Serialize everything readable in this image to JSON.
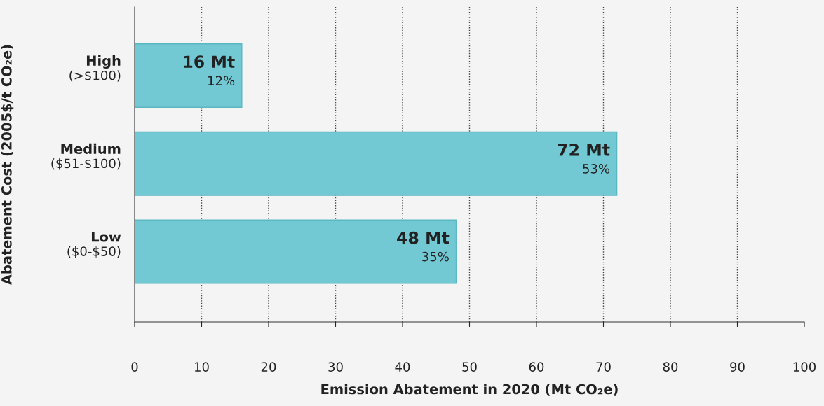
{
  "chart_data": {
    "type": "bar",
    "orientation": "horizontal",
    "categories": [
      "High\n(>$100)",
      "Medium\n($51-$100)",
      "Low\n($0-$50)"
    ],
    "values": [
      16,
      72,
      48
    ],
    "value_labels": [
      "16 Mt\n12%",
      "72 Mt\n53%",
      "48 Mt\n35%"
    ],
    "color": "#73c9d3",
    "xlabel": "Emission Abatement in 2020 (Mt CO₂e)",
    "ylabel": "Abatement Cost (2005$/t CO₂e)",
    "xlim": [
      0,
      100
    ],
    "xticks": [
      0,
      10,
      20,
      30,
      40,
      50,
      60,
      70,
      80,
      90,
      100
    ],
    "grid": "x",
    "legend": false
  }
}
